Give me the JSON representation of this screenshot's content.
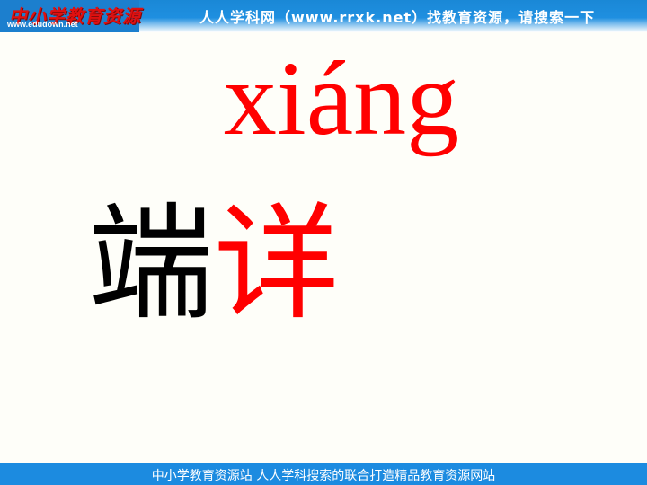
{
  "header": {
    "logo_text": "中小学教育资源",
    "logo_url": "www.edudown.net",
    "site_text": "人人学科网（www.rrxk.net）找教育资源，请搜索一下"
  },
  "slide": {
    "pinyin": "xiáng",
    "word_char_1": "端",
    "word_char_2": "详"
  },
  "footer": {
    "text": "中小学教育资源站 人人学科搜索的联合打造精品教育资源网站"
  },
  "colors": {
    "accent_blue": "#1c8be0",
    "highlight_red": "#ff0000",
    "background": "#fefef9"
  }
}
